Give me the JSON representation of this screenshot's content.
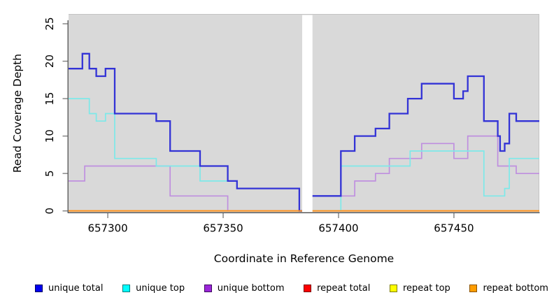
{
  "window": {
    "background": "#ffffff",
    "panel_background": "#d9d9d9"
  },
  "chart_data": {
    "type": "line",
    "subtype": "step",
    "title": "",
    "xlabel": "Coordinate in Reference Genome",
    "ylabel": "Read Coverage Depth",
    "xlim": [
      657283,
      657487
    ],
    "ylim": [
      0,
      26.4
    ],
    "x_end": 657487,
    "xticks": [
      657300,
      657350,
      657400,
      657450
    ],
    "xtick_labels": [
      "657300",
      "657350",
      "657400",
      "657450"
    ],
    "yticks": [
      0,
      5,
      10,
      15,
      20,
      25
    ],
    "ytick_labels": [
      "0",
      "5",
      "10",
      "15",
      "20",
      "25"
    ],
    "grid": false,
    "legend_position": "bottom",
    "axis_color": "#4d4d4d",
    "tick_color": "#808080",
    "panel_edge_color": "#c4c4c4",
    "masked_region": {
      "x_start": 657384,
      "x_end": 657388,
      "color": "#ffffff"
    },
    "plot_z_order": [
      "repeat total",
      "repeat top",
      "unique bottom",
      "unique top",
      "unique total",
      "repeat bottom"
    ],
    "series": [
      {
        "name": "unique total",
        "line_color": "#3333d6",
        "line_width": 2.3,
        "legend_fill": "#0000f0",
        "legend_border": "#000060",
        "steps": [
          [
            657283,
            19
          ],
          [
            657289,
            21
          ],
          [
            657292,
            19
          ],
          [
            657295,
            18
          ],
          [
            657299,
            19
          ],
          [
            657303,
            13
          ],
          [
            657321,
            12
          ],
          [
            657327,
            8
          ],
          [
            657340,
            6
          ],
          [
            657352,
            4
          ],
          [
            657356,
            3
          ],
          [
            657383,
            0
          ],
          [
            657388,
            2
          ],
          [
            657401,
            8
          ],
          [
            657407,
            10
          ],
          [
            657416,
            11
          ],
          [
            657422,
            13
          ],
          [
            657430,
            15
          ],
          [
            657436,
            17
          ],
          [
            657450,
            15
          ],
          [
            657454,
            16
          ],
          [
            657456,
            18
          ],
          [
            657463,
            12
          ],
          [
            657469,
            10
          ],
          [
            657470,
            8
          ],
          [
            657472,
            9
          ],
          [
            657474,
            13
          ],
          [
            657477,
            12
          ]
        ]
      },
      {
        "name": "unique top",
        "line_color": "#7de9e9",
        "line_width": 1.7,
        "legend_fill": "#00ffff",
        "legend_border": "#007d7d",
        "steps": [
          [
            657283,
            15
          ],
          [
            657292,
            13
          ],
          [
            657295,
            12
          ],
          [
            657299,
            13
          ],
          [
            657303,
            7
          ],
          [
            657321,
            6
          ],
          [
            657340,
            4
          ],
          [
            657356,
            3
          ],
          [
            657383,
            0
          ],
          [
            657401,
            6
          ],
          [
            657431,
            8
          ],
          [
            657463,
            2
          ],
          [
            657472,
            3
          ],
          [
            657474,
            7
          ]
        ]
      },
      {
        "name": "unique bottom",
        "line_color": "#bf8fdf",
        "line_width": 1.7,
        "legend_fill": "#9b26d9",
        "legend_border": "#3d0a5e",
        "steps": [
          [
            657283,
            4
          ],
          [
            657290,
            6
          ],
          [
            657327,
            2
          ],
          [
            657352,
            0
          ],
          [
            657388,
            2
          ],
          [
            657407,
            4
          ],
          [
            657416,
            5
          ],
          [
            657422,
            7
          ],
          [
            657436,
            9
          ],
          [
            657450,
            7
          ],
          [
            657456,
            10
          ],
          [
            657469,
            6
          ],
          [
            657477,
            5
          ]
        ]
      },
      {
        "name": "repeat total",
        "line_color": "#dd0000",
        "line_width": 1.7,
        "legend_fill": "#ff0000",
        "legend_border": "#7a0000",
        "steps": [
          [
            657283,
            0
          ]
        ]
      },
      {
        "name": "repeat top",
        "line_color": "#ffff00",
        "line_width": 1.7,
        "legend_fill": "#ffff00",
        "legend_border": "#7d7d00",
        "steps": [
          [
            657283,
            0
          ]
        ]
      },
      {
        "name": "repeat bottom",
        "line_color": "#ff9019",
        "line_width": 1.8,
        "legend_fill": "#ff9d00",
        "legend_border": "#8a5200",
        "steps": [
          [
            657283,
            0
          ]
        ]
      }
    ]
  }
}
